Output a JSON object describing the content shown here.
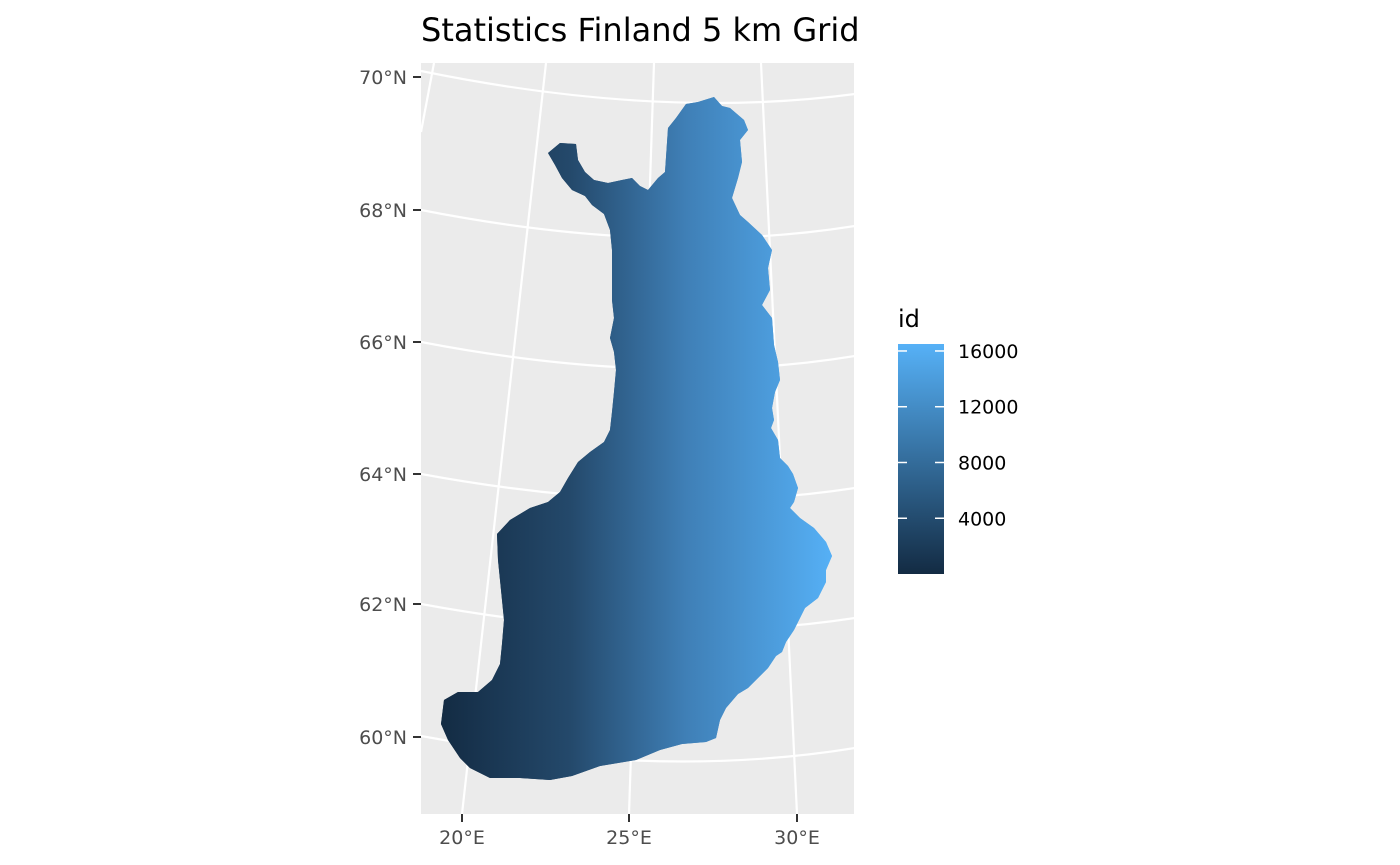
{
  "title": "Statistics Finland 5 km Grid",
  "chart_data": {
    "type": "heatmap",
    "title": "Statistics Finland 5 km Grid",
    "lat_ticks": [
      "70°N",
      "68°N",
      "66°N",
      "64°N",
      "62°N",
      "60°N"
    ],
    "lon_ticks": [
      "20°E",
      "25°E",
      "30°E"
    ],
    "legend": {
      "title": "id",
      "ticks": [
        16000,
        12000,
        8000,
        4000
      ],
      "labels": [
        "16000",
        "12000",
        "8000",
        "4000"
      ],
      "range": [
        1,
        16500
      ],
      "color_low": "#132b43",
      "color_high": "#56b1f7",
      "placement": "right"
    },
    "grid_cell_km": 5,
    "panel_background": "#ebebeb",
    "graticule_color": "#ffffff"
  }
}
